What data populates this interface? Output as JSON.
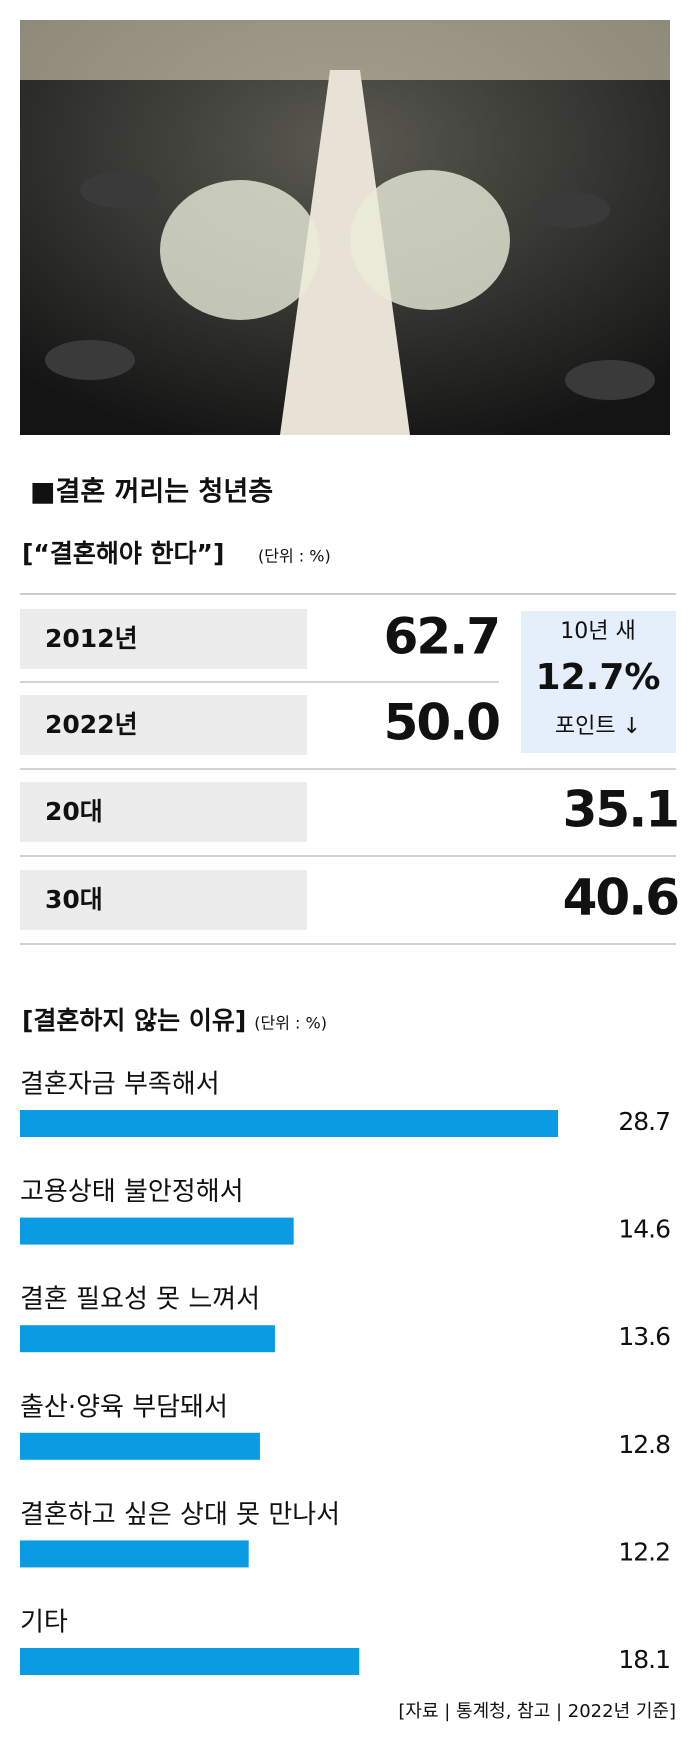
{
  "section_title": "■결혼 꺼리는 청년층",
  "table": {
    "title": "[“결혼해야 한다”]",
    "unit": "(단위 : %)",
    "rows": [
      [
        "2012년",
        "62.7"
      ],
      [
        "2022년",
        "50.0"
      ],
      [
        "20대",
        "35.1"
      ],
      [
        "30대",
        "40.6"
      ]
    ],
    "note": [
      "10년 새",
      "12.7%",
      "포인트 ↓"
    ]
  },
  "chart_data": {
    "type": "bar",
    "orientation": "horizontal",
    "title": "[결혼하지 않는 이유]",
    "unit": "(단위 : %)",
    "categories": [
      "결혼자금 부족해서",
      "고용상태 불안정해서",
      "결혼 필요성 못 느껴서",
      "출산·양육 부담돼서",
      "결혼하고 싶은 상대 못 만나서",
      "기타"
    ],
    "values": [
      28.7,
      14.6,
      13.6,
      12.8,
      12.2,
      18.1
    ],
    "color": "#0a9be3"
  },
  "source": "[자료 | 통계청, 참고 | 2022년 기준]"
}
